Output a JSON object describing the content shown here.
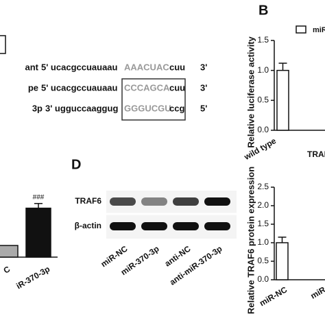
{
  "panel_a": {
    "rows": [
      {
        "label": "ant",
        "left": "5' ucacgccuauaau",
        "site": "AAACUAC",
        "right": "cuu",
        "end": "3'"
      },
      {
        "label": "pe",
        "left": "5' ucacgccuauaau",
        "site": "CCCAGCA",
        "right": "cuu",
        "end": "3'"
      },
      {
        "label": "3p",
        "left": "3' ugguccaaggug",
        "site": "GGGUCGU",
        "right": "ccg",
        "end": "5'"
      }
    ]
  },
  "panel_d": {
    "label": "D",
    "bands": [
      "TRAF6",
      "β-actin"
    ],
    "lanes": [
      "miR-NC",
      "miR-370-3p",
      "anti-NC",
      "anti-miR-370-3p"
    ]
  },
  "chart_data": [
    {
      "type": "bar",
      "panel": "B",
      "ylabel": "Relative luciferase activity",
      "xlabel": "TRAF",
      "categories": [
        "wild type"
      ],
      "series": [
        {
          "name": "miR",
          "color": "#ffffff",
          "values": [
            1.0
          ],
          "errors": [
            0.12
          ]
        }
      ],
      "ylim": [
        0,
        1.5
      ],
      "yticks": [
        {
          "value": 0,
          "label": "0.0"
        },
        {
          "value": 0.5,
          "label": "0.5"
        },
        {
          "value": 1,
          "label": "1.0"
        },
        {
          "value": 1.5,
          "label": "1.5"
        }
      ]
    },
    {
      "type": "bar",
      "categories": [
        "C",
        "iR-370-3p"
      ],
      "series": [
        {
          "color": "#aaaaaa",
          "values": [
            1.0,
            4.2
          ],
          "errors": [
            0,
            0.4
          ]
        }
      ],
      "annotations": [
        null,
        "###"
      ],
      "ylim": [
        0,
        5
      ]
    },
    {
      "type": "bar",
      "ylabel": "Relative TRAF6 protein expression",
      "categories": [
        "miR-NC",
        "miR"
      ],
      "series": [
        {
          "color": "#ffffff",
          "values": [
            1.0,
            null
          ],
          "errors": [
            0.15,
            null
          ]
        }
      ],
      "ylim": [
        0,
        2.5
      ],
      "yticks": [
        {
          "value": 0,
          "label": "0.0"
        },
        {
          "value": 0.5,
          "label": "0.5"
        },
        {
          "value": 1,
          "label": "1.0"
        },
        {
          "value": 1.5,
          "label": "1.5"
        },
        {
          "value": 2,
          "label": "2.0"
        },
        {
          "value": 2.5,
          "label": "2.5"
        }
      ]
    }
  ]
}
